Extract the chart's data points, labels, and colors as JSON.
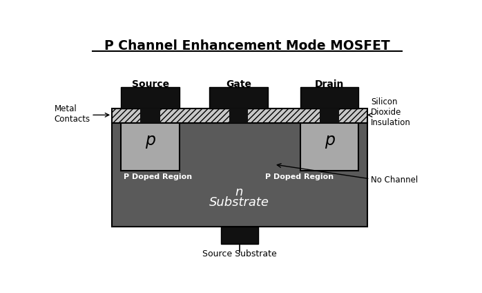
{
  "title": "P Channel Enhancement Mode MOSFET",
  "bg_color": "#ffffff",
  "substrate_color": "#5a5a5a",
  "p_region_color": "#a8a8a8",
  "oxide_color": "#c8c8c8",
  "metal_color": "#111111",
  "text_white": "#ffffff",
  "text_black": "#000000",
  "source_label": "Source",
  "gate_label": "Gate",
  "drain_label": "Drain",
  "metal_contacts_label": "Metal\nContacts",
  "sio2_label": "Silicon\nDioxide\nInsulation",
  "p_doped_left_label": "P Doped Region",
  "p_doped_right_label": "P Doped Region",
  "n_sub_line1": "n",
  "n_sub_line2": "Substrate",
  "no_channel_label": "No Channel",
  "source_sub_label": "Source Substrate",
  "p_sym": "p"
}
